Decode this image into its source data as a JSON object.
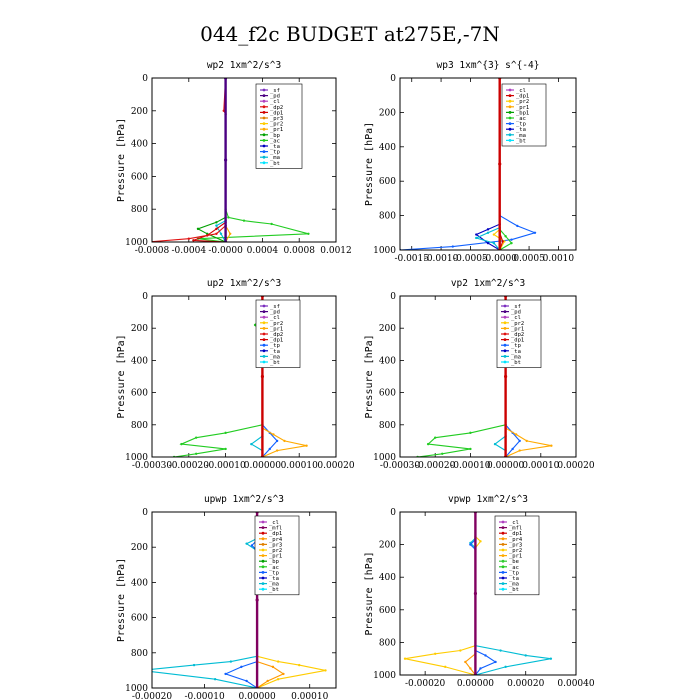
{
  "figure_title": "044_f2c  BUDGET at275E,-7N",
  "colors": {
    "sf": "#7b2fbf",
    "pd": "#4b0082",
    "cl": "#b040c0",
    "mfl": "#800060",
    "dp1": "#d00000",
    "dp2": "#e01010",
    "pr1": "#ffaa00",
    "pr2": "#ffcc00",
    "pr3": "#e08000",
    "pr4": "#ff9900",
    "bp": "#00a000",
    "bp1": "#00a000",
    "ac": "#22cc22",
    "tp": "#1060ff",
    "ta": "#0000c0",
    "ma": "#00bcd4",
    "bt": "#00e5ff",
    "be": "#33cc33",
    "main": "#cc0000"
  },
  "chart_data": [
    {
      "id": "wp2",
      "type": "line",
      "title": "wp2  1xm^2/s^3",
      "ylabel": "Pressure [hPa]",
      "ylim": [
        1000,
        0
      ],
      "yticks": [
        0,
        200,
        400,
        600,
        800,
        1000
      ],
      "xlim": [
        -0.0008,
        0.0012
      ],
      "xticks": [
        -0.0008,
        -0.0004,
        0.0,
        0.0004,
        0.0008,
        0.0012
      ],
      "xticklabels": [
        "-0.0008",
        "-0.0004",
        "-0.0000",
        "0.0004",
        "0.0008",
        "0.0012"
      ],
      "legend": [
        "_sf",
        "_pd",
        "_cl",
        "_dp2",
        "_dp1",
        "_pr3",
        "_pr2",
        "_pr1",
        "_bp",
        "_ac",
        "_ta",
        "_tp",
        "_ma",
        "_bt"
      ],
      "series": [
        {
          "name": "_ac",
          "color": "ac",
          "x": [
            0,
            0,
            3e-05,
            0.0002,
            0.0005,
            0.0009,
            -0.0003,
            0
          ],
          "y": [
            0,
            800,
            850,
            870,
            890,
            950,
            980,
            1000
          ]
        },
        {
          "name": "_bp",
          "color": "bp",
          "x": [
            0,
            0,
            -0.0001,
            -0.0003,
            -0.0002,
            0
          ],
          "y": [
            0,
            850,
            880,
            920,
            950,
            1000
          ]
        },
        {
          "name": "_ma",
          "color": "ma",
          "x": [
            0,
            0,
            -0.0001,
            -5e-05,
            0
          ],
          "y": [
            0,
            870,
            900,
            950,
            1000
          ]
        },
        {
          "name": "_pr1",
          "color": "pr1",
          "x": [
            0,
            0,
            5e-05,
            0
          ],
          "y": [
            0,
            900,
            950,
            1000
          ]
        },
        {
          "name": "_dp1",
          "color": "dp1",
          "x": [
            0,
            0,
            -0.0001,
            -0.0002,
            -0.00035,
            0
          ],
          "y": [
            0,
            880,
            920,
            960,
            990,
            1000
          ]
        },
        {
          "name": "_dp2",
          "color": "dp2",
          "x": [
            0,
            -2e-05,
            0,
            0,
            -0.0001,
            -0.0004,
            -0.00085
          ],
          "y": [
            0,
            200,
            220,
            900,
            950,
            980,
            1000
          ]
        },
        {
          "name": "_pd",
          "color": "pd",
          "x": [
            0,
            0,
            0
          ],
          "y": [
            0,
            500,
            1000
          ]
        }
      ]
    },
    {
      "id": "wp3",
      "type": "line",
      "title": "wp3  1xm^{3} s^{-4}",
      "ylabel": "Pressure [hPa]",
      "ylim": [
        1000,
        0
      ],
      "yticks": [
        0,
        200,
        400,
        600,
        800,
        1000
      ],
      "xlim": [
        -0.0017,
        0.0013
      ],
      "xticks": [
        -0.0015,
        -0.001,
        -0.0005,
        0.0,
        0.0005,
        0.001
      ],
      "xticklabels": [
        "-0.0015",
        "-0.0010",
        "-0.0005",
        "-0.0000",
        "0.0005",
        "0.0010"
      ],
      "legend": [
        "_cl",
        "_dp1",
        "_pr2",
        "_pr1",
        "_bp1",
        "_ac",
        "_tp",
        "_ta",
        "_ma",
        "_bt"
      ],
      "series": [
        {
          "name": "_tp",
          "color": "tp",
          "x": [
            0,
            0,
            0.0003,
            0.0006,
            0.0002,
            -0.0008,
            -0.0017
          ],
          "y": [
            0,
            800,
            860,
            900,
            940,
            980,
            1000
          ]
        },
        {
          "name": "_ta",
          "color": "ta",
          "x": [
            0,
            0,
            -0.0002,
            -0.0004,
            -0.0002,
            0
          ],
          "y": [
            0,
            850,
            880,
            910,
            960,
            1000
          ]
        },
        {
          "name": "_ma",
          "color": "ma",
          "x": [
            0,
            0,
            -0.0002,
            -0.0004,
            -0.0001,
            0
          ],
          "y": [
            0,
            870,
            900,
            930,
            960,
            1000
          ]
        },
        {
          "name": "_ac",
          "color": "ac",
          "x": [
            0,
            0,
            0.0001,
            0.0002,
            0
          ],
          "y": [
            0,
            880,
            920,
            960,
            1000
          ]
        },
        {
          "name": "_pr2",
          "color": "pr2",
          "x": [
            0,
            0,
            -0.0001,
            8e-05,
            0
          ],
          "y": [
            0,
            880,
            910,
            950,
            1000
          ]
        },
        {
          "name": "_dp1",
          "color": "dp1",
          "x": [
            0,
            0,
            5e-05,
            0
          ],
          "y": [
            0,
            900,
            950,
            1000
          ]
        },
        {
          "name": "_cl",
          "color": "main",
          "x": [
            0,
            0,
            0
          ],
          "y": [
            0,
            500,
            1000
          ]
        }
      ]
    },
    {
      "id": "up2",
      "type": "line",
      "title": "up2  1xm^2/s^3",
      "ylabel": "Pressure [hPa]",
      "ylim": [
        1000,
        0
      ],
      "yticks": [
        0,
        200,
        400,
        600,
        800,
        1000
      ],
      "xlim": [
        -0.0003,
        0.0002
      ],
      "xticks": [
        -0.0003,
        -0.0002,
        -0.0001,
        0.0,
        0.0001,
        0.0002
      ],
      "xticklabels": [
        "-0.00030",
        "-0.00020",
        "-0.00010",
        "0.00000",
        "0.00010",
        "0.00020"
      ],
      "legend": [
        "_sf",
        "_pd",
        "_cl",
        "_pr2",
        "_pr1",
        "_dp2",
        "_dp1",
        "_tp",
        "_ta",
        "_ma",
        "_bt"
      ],
      "series": [
        {
          "name": "_dp2",
          "color": "ac",
          "x": [
            0,
            0,
            -2e-05,
            0,
            0,
            -0.0001,
            -0.00018,
            -0.00022,
            -0.0001,
            -0.00018,
            -0.00024
          ],
          "y": [
            0,
            120,
            180,
            240,
            800,
            850,
            880,
            920,
            950,
            980,
            1000
          ]
        },
        {
          "name": "_tp",
          "color": "tp",
          "x": [
            0,
            0,
            2e-05,
            0,
            0,
            2e-05,
            4e-05,
            2e-05,
            0
          ],
          "y": [
            0,
            140,
            180,
            230,
            800,
            850,
            900,
            950,
            1000
          ]
        },
        {
          "name": "_ma",
          "color": "ma",
          "x": [
            0,
            0,
            0,
            -3e-05,
            0,
            0
          ],
          "y": [
            0,
            800,
            870,
            920,
            960,
            1000
          ]
        },
        {
          "name": "_pr1",
          "color": "pr1",
          "x": [
            0,
            0,
            3e-05,
            6e-05,
            0.00012,
            4e-05,
            0
          ],
          "y": [
            0,
            820,
            860,
            900,
            930,
            960,
            1000
          ]
        },
        {
          "name": "_cl",
          "color": "main",
          "x": [
            0,
            0,
            0
          ],
          "y": [
            0,
            500,
            1000
          ]
        }
      ]
    },
    {
      "id": "vp2",
      "type": "line",
      "title": "vp2  1xm^2/s^3",
      "ylabel": "Pressure [hPa]",
      "ylim": [
        1000,
        0
      ],
      "yticks": [
        0,
        200,
        400,
        600,
        800,
        1000
      ],
      "xlim": [
        -0.0003,
        0.0002
      ],
      "xticks": [
        -0.0003,
        -0.0002,
        -0.0001,
        0.0,
        0.0001,
        0.0002
      ],
      "xticklabels": [
        "-0.00030",
        "-0.00020",
        "-0.00010",
        "0.00000",
        "0.00010",
        "0.00020"
      ],
      "legend": [
        "_sf",
        "_pd",
        "_cl",
        "_pr2",
        "_pr1",
        "_dp2",
        "_dp1",
        "_tp",
        "_ta",
        "_ma",
        "_bt"
      ],
      "series": [
        {
          "name": "_dp2",
          "color": "ac",
          "x": [
            0,
            0,
            -2e-05,
            0,
            0,
            -0.0001,
            -0.0002,
            -0.00022,
            -0.0001,
            -0.00018,
            -0.00025
          ],
          "y": [
            0,
            120,
            180,
            240,
            800,
            850,
            880,
            920,
            950,
            980,
            1000
          ]
        },
        {
          "name": "_tp",
          "color": "tp",
          "x": [
            0,
            0,
            3e-05,
            0,
            0,
            2e-05,
            4e-05,
            2e-05,
            0
          ],
          "y": [
            0,
            140,
            180,
            230,
            800,
            850,
            900,
            950,
            1000
          ]
        },
        {
          "name": "_ma",
          "color": "ma",
          "x": [
            0,
            0,
            0,
            -3e-05,
            0,
            0
          ],
          "y": [
            0,
            800,
            870,
            920,
            960,
            1000
          ]
        },
        {
          "name": "_pr1",
          "color": "pr1",
          "x": [
            0,
            0,
            3e-05,
            6e-05,
            0.00013,
            4e-05,
            0
          ],
          "y": [
            0,
            820,
            860,
            900,
            930,
            960,
            1000
          ]
        },
        {
          "name": "_cl",
          "color": "main",
          "x": [
            0,
            0,
            0
          ],
          "y": [
            0,
            500,
            1000
          ]
        }
      ]
    },
    {
      "id": "upwp",
      "type": "line",
      "title": "upwp  1xm^2/s^3",
      "ylabel": "Pressure [hPa]",
      "ylim": [
        1000,
        0
      ],
      "yticks": [
        0,
        200,
        400,
        600,
        800,
        1000
      ],
      "xlim": [
        -0.0002,
        0.00015
      ],
      "xticks": [
        -0.0002,
        -0.0001,
        0.0,
        0.0001
      ],
      "xticklabels": [
        "-0.00020",
        "-0.00010",
        "0.00000",
        "0.00010"
      ],
      "legend": [
        "_cl",
        "_mfl",
        "_dp1",
        "_pr4",
        "_pr3",
        "_pr2",
        "_pr1",
        "_bp",
        "_ac",
        "_tp",
        "_ta",
        "_ma",
        "_bt"
      ],
      "series": [
        {
          "name": "_pr1",
          "color": "pr2",
          "x": [
            0,
            0,
            2e-05,
            0,
            0,
            4e-05,
            8e-05,
            0.00013,
            4e-05,
            0
          ],
          "y": [
            0,
            140,
            180,
            230,
            820,
            850,
            870,
            900,
            950,
            1000
          ]
        },
        {
          "name": "_ma",
          "color": "ma",
          "x": [
            0,
            0,
            -2e-05,
            0,
            0,
            -5e-05,
            -0.00012,
            -0.00022,
            -8e-05,
            0
          ],
          "y": [
            0,
            150,
            180,
            220,
            820,
            850,
            870,
            900,
            950,
            1000
          ]
        },
        {
          "name": "_tp",
          "color": "tp",
          "x": [
            0,
            0,
            -1e-05,
            0,
            0,
            -3e-05,
            -6e-05,
            -2e-05,
            0
          ],
          "y": [
            0,
            160,
            190,
            220,
            850,
            880,
            920,
            960,
            1000
          ]
        },
        {
          "name": "_pr4",
          "color": "pr4",
          "x": [
            0,
            0,
            3e-05,
            5e-05,
            2e-05,
            0
          ],
          "y": [
            0,
            850,
            880,
            920,
            960,
            1000
          ]
        },
        {
          "name": "_mfl",
          "color": "mfl",
          "x": [
            0,
            0,
            0
          ],
          "y": [
            0,
            500,
            1000
          ]
        }
      ]
    },
    {
      "id": "vpwp",
      "type": "line",
      "title": "vpwp  1xm^2/s^3",
      "ylabel": "Pressure [hPa]",
      "ylim": [
        1000,
        0
      ],
      "yticks": [
        0,
        200,
        400,
        600,
        800,
        1000
      ],
      "xlim": [
        -0.0003,
        0.0004
      ],
      "xticks": [
        -0.0002,
        0.0,
        0.0002,
        0.0004
      ],
      "xticklabels": [
        "-0.00020",
        "0.00000",
        "0.00020",
        "0.00040"
      ],
      "legend": [
        "_cl",
        "_mfl",
        "_dp1",
        "_pr4",
        "_pr3",
        "_pr2",
        "_pr1",
        "_be",
        "_ac",
        "_tp",
        "_ta",
        "_ma",
        "_bt"
      ],
      "series": [
        {
          "name": "_pr1",
          "color": "pr2",
          "x": [
            0,
            0,
            2e-05,
            0,
            0,
            -6e-05,
            -0.00016,
            -0.00028,
            -0.00012,
            0
          ],
          "y": [
            0,
            150,
            180,
            220,
            820,
            850,
            870,
            900,
            950,
            1000
          ]
        },
        {
          "name": "_ma",
          "color": "ma",
          "x": [
            0,
            0,
            -2e-05,
            0,
            0,
            0.0001,
            0.0002,
            0.0003,
            0.00012,
            0
          ],
          "y": [
            0,
            160,
            190,
            220,
            820,
            850,
            880,
            900,
            950,
            1000
          ]
        },
        {
          "name": "_tp",
          "color": "tp",
          "x": [
            0,
            0,
            -2e-05,
            0,
            0,
            4e-05,
            8e-05,
            2e-05,
            0
          ],
          "y": [
            0,
            170,
            200,
            230,
            850,
            880,
            920,
            960,
            1000
          ]
        },
        {
          "name": "_pr4",
          "color": "pr4",
          "x": [
            0,
            0,
            -4e-05,
            -2e-05,
            0
          ],
          "y": [
            0,
            870,
            920,
            960,
            1000
          ]
        },
        {
          "name": "_mfl",
          "color": "mfl",
          "x": [
            0,
            0,
            0
          ],
          "y": [
            0,
            500,
            1000
          ]
        }
      ]
    }
  ]
}
